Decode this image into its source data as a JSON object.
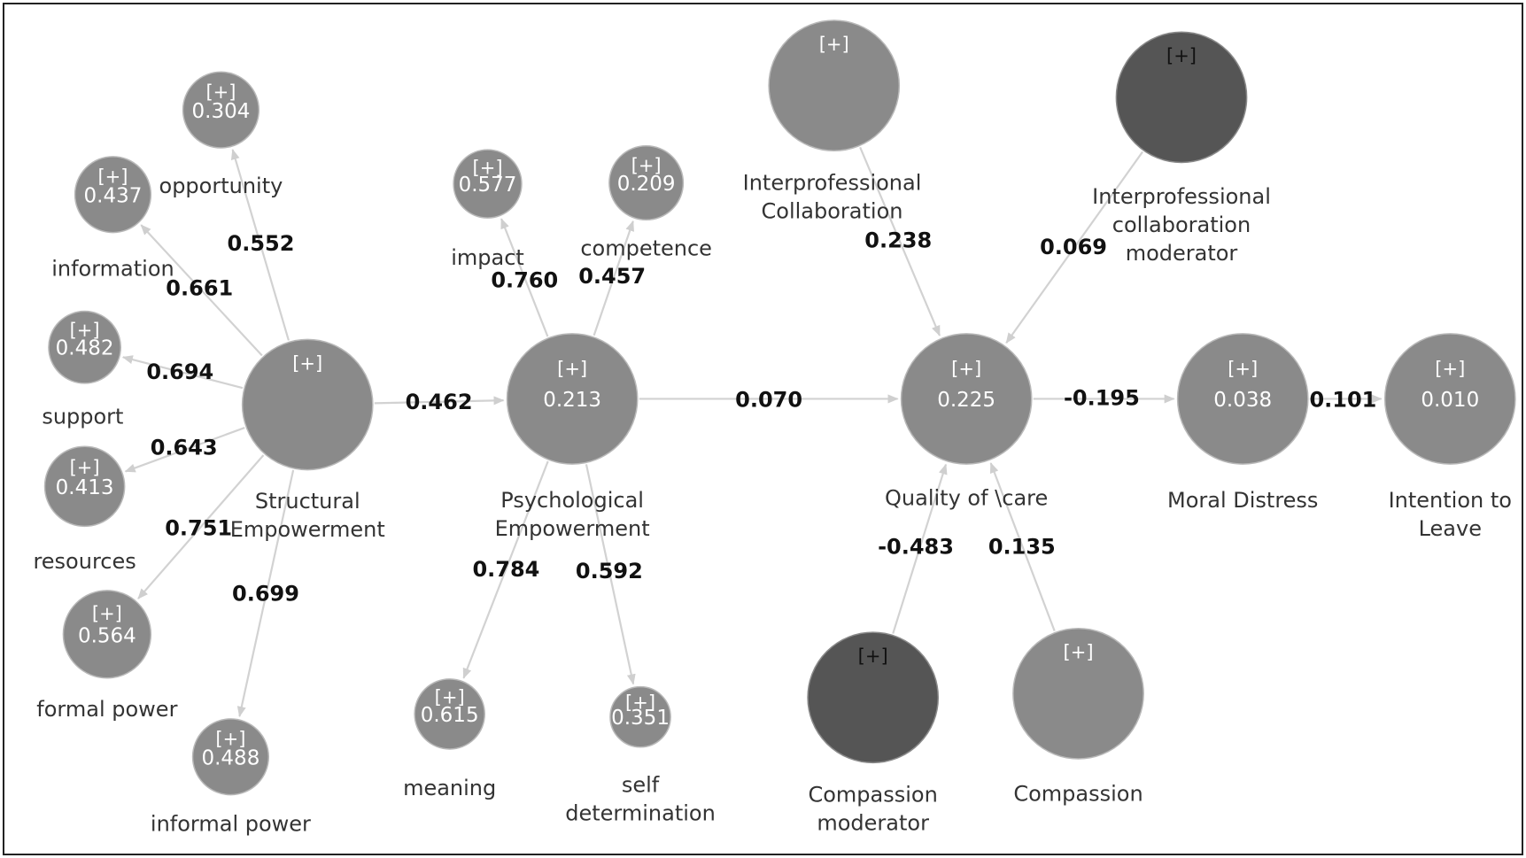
{
  "diagram": {
    "type": "path-model",
    "nodes": [
      {
        "id": "structural-empowerment",
        "name": [
          "Structural",
          "Empowerment"
        ],
        "expand": "[+]",
        "rsq": "",
        "tone": "light"
      },
      {
        "id": "psychological-empowerment",
        "name": [
          "Psychological",
          "Empowerment"
        ],
        "expand": "[+]",
        "rsq": "0.213",
        "tone": "light"
      },
      {
        "id": "quality-of-care",
        "name": [
          "Quality of \\care"
        ],
        "expand": "[+]",
        "rsq": "0.225",
        "tone": "light"
      },
      {
        "id": "moral-distress",
        "name": [
          "Moral Distress"
        ],
        "expand": "[+]",
        "rsq": "0.038",
        "tone": "light"
      },
      {
        "id": "intention-to-leave",
        "name": [
          "Intention to",
          "Leave"
        ],
        "expand": "[+]",
        "rsq": "0.010",
        "tone": "light"
      },
      {
        "id": "interprofessional-collaboration",
        "name": [
          "Interprofessional",
          "Collaboration"
        ],
        "expand": "[+]",
        "rsq": "",
        "tone": "light"
      },
      {
        "id": "interprofessional-collaboration-moderator",
        "name": [
          "Interprofessional",
          "collaboration",
          "moderator"
        ],
        "expand": "[+]",
        "rsq": "",
        "tone": "dark"
      },
      {
        "id": "compassion-moderator",
        "name": [
          "Compassion",
          "moderator"
        ],
        "expand": "[+]",
        "rsq": "",
        "tone": "dark"
      },
      {
        "id": "compassion",
        "name": [
          "Compassion"
        ],
        "expand": "[+]",
        "rsq": "",
        "tone": "light"
      },
      {
        "id": "opportunity",
        "name": [
          "opportunity"
        ],
        "expand": "[+]",
        "rsq": "0.304",
        "tone": "light"
      },
      {
        "id": "information",
        "name": [
          "information"
        ],
        "expand": "[+]",
        "rsq": "0.437",
        "tone": "light"
      },
      {
        "id": "support",
        "name": [
          "support"
        ],
        "expand": "[+]",
        "rsq": "0.482",
        "tone": "light"
      },
      {
        "id": "resources",
        "name": [
          "resources"
        ],
        "expand": "[+]",
        "rsq": "0.413",
        "tone": "light"
      },
      {
        "id": "formal-power",
        "name": [
          "formal power"
        ],
        "expand": "[+]",
        "rsq": "0.564",
        "tone": "light"
      },
      {
        "id": "informal-power",
        "name": [
          "informal power"
        ],
        "expand": "[+]",
        "rsq": "0.488",
        "tone": "light"
      },
      {
        "id": "impact",
        "name": [
          "impact"
        ],
        "expand": "[+]",
        "rsq": "0.577",
        "tone": "light"
      },
      {
        "id": "competence",
        "name": [
          "competence"
        ],
        "expand": "[+]",
        "rsq": "0.209",
        "tone": "light"
      },
      {
        "id": "meaning",
        "name": [
          "meaning"
        ],
        "expand": "[+]",
        "rsq": "0.615",
        "tone": "light"
      },
      {
        "id": "self-determination",
        "name": [
          "self",
          "determination"
        ],
        "expand": "[+]",
        "rsq": "0.351",
        "tone": "light"
      }
    ],
    "edges": [
      {
        "from": "structural-empowerment",
        "to": "opportunity",
        "coef": "0.552"
      },
      {
        "from": "structural-empowerment",
        "to": "information",
        "coef": "0.661"
      },
      {
        "from": "structural-empowerment",
        "to": "support",
        "coef": "0.694"
      },
      {
        "from": "structural-empowerment",
        "to": "resources",
        "coef": "0.643"
      },
      {
        "from": "structural-empowerment",
        "to": "formal-power",
        "coef": "0.751"
      },
      {
        "from": "structural-empowerment",
        "to": "informal-power",
        "coef": "0.699"
      },
      {
        "from": "structural-empowerment",
        "to": "psychological-empowerment",
        "coef": "0.462"
      },
      {
        "from": "psychological-empowerment",
        "to": "impact",
        "coef": "0.760"
      },
      {
        "from": "psychological-empowerment",
        "to": "competence",
        "coef": "0.457"
      },
      {
        "from": "psychological-empowerment",
        "to": "meaning",
        "coef": "0.784"
      },
      {
        "from": "psychological-empowerment",
        "to": "self-determination",
        "coef": "0.592"
      },
      {
        "from": "psychological-empowerment",
        "to": "quality-of-care",
        "coef": "0.070"
      },
      {
        "from": "interprofessional-collaboration",
        "to": "quality-of-care",
        "coef": "0.238"
      },
      {
        "from": "interprofessional-collaboration-moderator",
        "to": "quality-of-care",
        "coef": "0.069"
      },
      {
        "from": "compassion-moderator",
        "to": "quality-of-care",
        "coef": "-0.483"
      },
      {
        "from": "compassion",
        "to": "quality-of-care",
        "coef": "0.135"
      },
      {
        "from": "quality-of-care",
        "to": "moral-distress",
        "coef": "-0.195"
      },
      {
        "from": "moral-distress",
        "to": "intention-to-leave",
        "coef": "0.101"
      }
    ]
  }
}
